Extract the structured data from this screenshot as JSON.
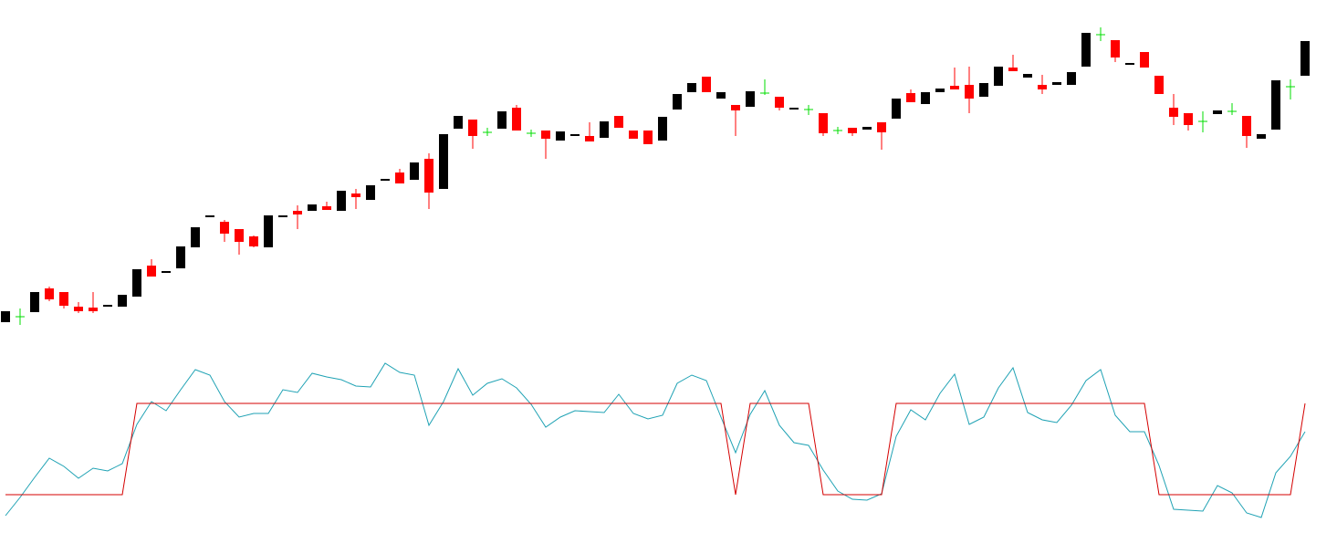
{
  "chart_data": [
    {
      "type": "candlestick",
      "up_color": "#000000",
      "down_color": "#ff0000",
      "doji_color": "#00dd00",
      "ylim": [
        0,
        400
      ],
      "open": [
        47,
        53,
        58,
        84,
        80,
        64,
        63,
        64,
        64,
        75,
        109,
        101,
        106,
        129,
        162,
        157,
        149,
        141,
        129,
        162,
        169,
        169,
        174,
        169,
        188,
        181,
        202,
        211,
        203,
        226,
        193,
        259,
        269,
        255,
        259,
        282,
        254,
        257,
        246,
        251,
        251,
        249,
        273,
        257,
        257,
        246,
        280,
        299,
        316,
        292,
        285,
        283,
        298,
        294,
        280,
        280,
        276,
        257,
        260,
        258,
        266,
        270,
        298,
        286,
        299,
        306,
        307,
        294,
        306,
        326,
        315,
        307,
        307,
        307,
        327,
        362,
        356,
        329,
        343,
        317,
        282,
        276,
        267,
        275,
        278,
        273,
        248,
        258,
        305,
        317
      ],
      "high": [
        59,
        62,
        80,
        86,
        80,
        69,
        80,
        66,
        77,
        105,
        116,
        103,
        130,
        151,
        164,
        159,
        149,
        142,
        164,
        164,
        175,
        176,
        179,
        191,
        193,
        197,
        204,
        215,
        222,
        232,
        253,
        273,
        269,
        260,
        278,
        285,
        258,
        257,
        256,
        253,
        266,
        267,
        273,
        257,
        257,
        272,
        297,
        309,
        316,
        299,
        285,
        300,
        313,
        294,
        282,
        285,
        276,
        261,
        260,
        261,
        266,
        292,
        302,
        299,
        303,
        326,
        327,
        309,
        327,
        340,
        319,
        318,
        310,
        321,
        364,
        370,
        356,
        331,
        343,
        317,
        297,
        276,
        278,
        279,
        287,
        273,
        253,
        312,
        313,
        355
      ],
      "low": [
        47,
        44,
        58,
        70,
        62,
        57,
        57,
        64,
        64,
        75,
        97,
        101,
        106,
        129,
        162,
        135,
        121,
        129,
        129,
        162,
        149,
        169,
        170,
        169,
        171,
        181,
        202,
        199,
        203,
        171,
        193,
        259,
        237,
        251,
        259,
        257,
        250,
        226,
        246,
        251,
        245,
        249,
        260,
        248,
        242,
        246,
        280,
        299,
        299,
        292,
        251,
        283,
        296,
        279,
        280,
        274,
        251,
        253,
        251,
        258,
        236,
        270,
        288,
        286,
        299,
        302,
        276,
        294,
        306,
        322,
        315,
        297,
        307,
        307,
        327,
        355,
        332,
        329,
        326,
        297,
        263,
        257,
        255,
        275,
        274,
        238,
        248,
        258,
        291,
        317
      ],
      "close": [
        59,
        53,
        80,
        72,
        65,
        59,
        59,
        66,
        77,
        105,
        97,
        103,
        130,
        151,
        164,
        144,
        135,
        130,
        164,
        164,
        165,
        176,
        170,
        191,
        184,
        197,
        204,
        199,
        222,
        189,
        253,
        273,
        251,
        255,
        278,
        257,
        254,
        248,
        256,
        253,
        245,
        267,
        260,
        248,
        242,
        272,
        297,
        309,
        299,
        299,
        279,
        300,
        298,
        282,
        282,
        280,
        254,
        257,
        254,
        261,
        255,
        292,
        288,
        299,
        303,
        302,
        292,
        309,
        327,
        322,
        319,
        302,
        310,
        321,
        364,
        362,
        337,
        331,
        326,
        297,
        272,
        263,
        267,
        279,
        278,
        251,
        253,
        312,
        305,
        355
      ]
    },
    {
      "type": "line",
      "ylim": [
        0,
        200
      ],
      "series": [
        {
          "color": "#1fa2b4",
          "values": [
            15,
            35,
            57,
            78,
            69,
            56,
            67,
            64,
            72,
            115,
            140,
            130,
            153,
            175,
            169,
            140,
            123,
            127,
            127,
            153,
            150,
            171,
            167,
            164,
            157,
            156,
            182,
            172,
            169,
            114,
            140,
            176,
            147,
            160,
            165,
            155,
            137,
            112,
            123,
            130,
            129,
            128,
            148,
            127,
            121,
            125,
            160,
            169,
            163,
            123,
            84,
            126,
            152,
            114,
            95,
            92,
            65,
            42,
            33,
            32,
            39,
            102,
            131,
            120,
            149,
            170,
            115,
            123,
            155,
            177,
            128,
            120,
            117,
            136,
            163,
            175,
            125,
            107,
            107,
            70,
            22,
            21,
            20,
            48,
            40,
            18,
            13,
            62,
            80,
            107
          ]
        },
        {
          "color": "#d40000",
          "values": [
            38,
            38,
            38,
            38,
            38,
            38,
            38,
            38,
            38,
            138,
            138,
            138,
            138,
            138,
            138,
            138,
            138,
            138,
            138,
            138,
            138,
            138,
            138,
            138,
            138,
            138,
            138,
            138,
            138,
            138,
            138,
            138,
            138,
            138,
            138,
            138,
            138,
            138,
            138,
            138,
            138,
            138,
            138,
            138,
            138,
            138,
            138,
            138,
            138,
            138,
            38,
            138,
            138,
            138,
            138,
            138,
            38,
            38,
            38,
            38,
            38,
            138,
            138,
            138,
            138,
            138,
            138,
            138,
            138,
            138,
            138,
            138,
            138,
            138,
            138,
            138,
            138,
            138,
            138,
            38,
            38,
            38,
            38,
            38,
            38,
            38,
            38,
            38,
            38,
            138
          ]
        }
      ]
    }
  ]
}
